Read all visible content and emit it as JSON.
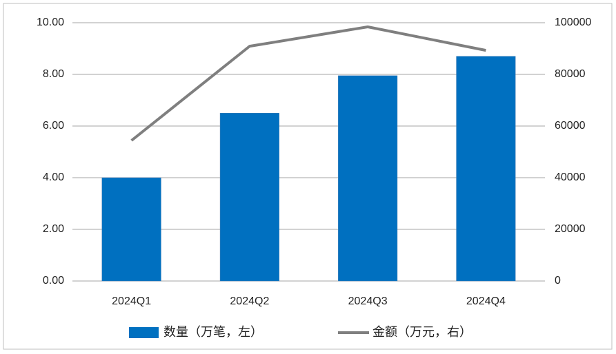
{
  "chart_data": {
    "type": "bar_line",
    "categories": [
      "2024Q1",
      "2024Q2",
      "2024Q3",
      "2024Q4"
    ],
    "series": [
      {
        "name": "数量（万笔，左）",
        "type": "bar",
        "color": "#0070c0",
        "values": [
          4.0,
          6.5,
          7.95,
          8.7
        ]
      },
      {
        "name": "金额（万元，右）",
        "type": "line",
        "axis": "y2",
        "color": "#7f7f7f",
        "values": [
          54400,
          90900,
          98400,
          89300
        ]
      }
    ],
    "ylim": [
      0,
      10
    ],
    "yticks": [
      {
        "value": 0,
        "label": "0.00"
      },
      {
        "value": 2,
        "label": "2.00"
      },
      {
        "value": 4,
        "label": "4.00"
      },
      {
        "value": 6,
        "label": "6.00"
      },
      {
        "value": 8,
        "label": "8.00"
      },
      {
        "value": 10,
        "label": "10.00"
      }
    ],
    "y2lim": [
      0,
      100000
    ],
    "y2ticks": [
      0,
      20000,
      40000,
      60000,
      80000,
      100000
    ],
    "grid": true,
    "legend": "bottom"
  }
}
